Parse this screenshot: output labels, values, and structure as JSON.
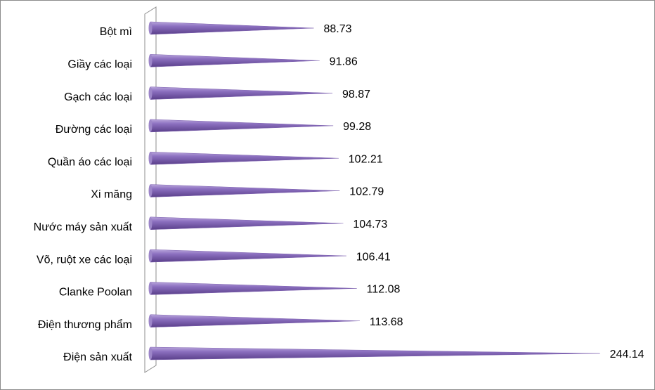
{
  "chart_data": {
    "type": "cone-bar",
    "categories": [
      "Bột mì",
      "Giầy các loại",
      "Gạch các loại",
      "Đường các loại",
      "Quần áo các loại",
      "Xi măng",
      "Nước máy sản xuất",
      "Võ, ruột xe các loại",
      "Clanke Poolan",
      "Điện thương phẩm",
      "Điện sản xuất"
    ],
    "values": [
      88.73,
      91.86,
      98.87,
      99.28,
      102.21,
      102.79,
      104.73,
      106.41,
      112.08,
      113.68,
      244.14
    ],
    "color": "#7e62b0",
    "xlim": [
      0,
      250
    ]
  }
}
